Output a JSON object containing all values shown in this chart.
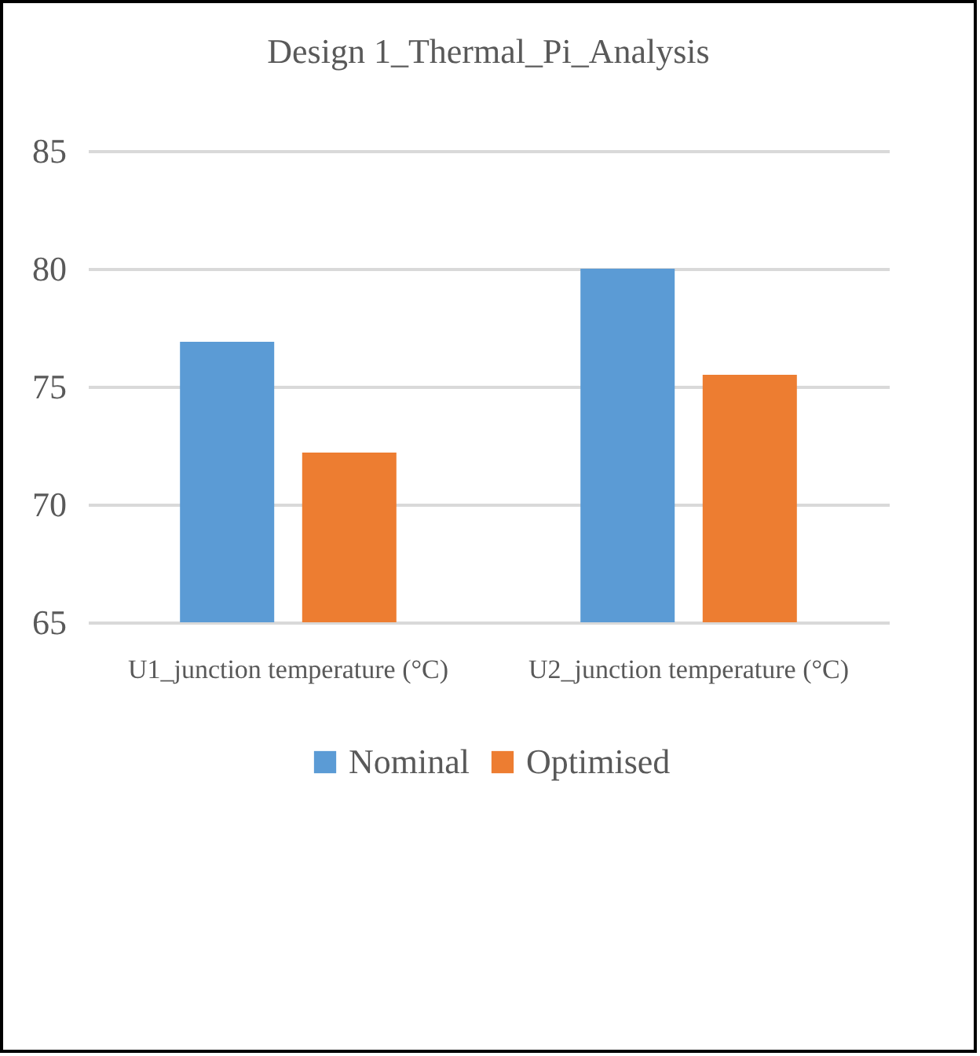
{
  "chart_data": {
    "type": "bar",
    "title": "Design 1_Thermal_Pi_Analysis",
    "categories": [
      "U1_junction temperature (°C)",
      "U2_junction temperature (°C)"
    ],
    "series": [
      {
        "name": "Nominal",
        "color": "#5b9bd5",
        "values": [
          76.9,
          80.0
        ]
      },
      {
        "name": "Optimised",
        "color": "#ed7d31",
        "values": [
          72.2,
          75.5
        ]
      }
    ],
    "ylim": [
      65,
      85
    ],
    "yticks": [
      65,
      70,
      75,
      80,
      85
    ],
    "grid": "y",
    "legend": "bottom"
  }
}
